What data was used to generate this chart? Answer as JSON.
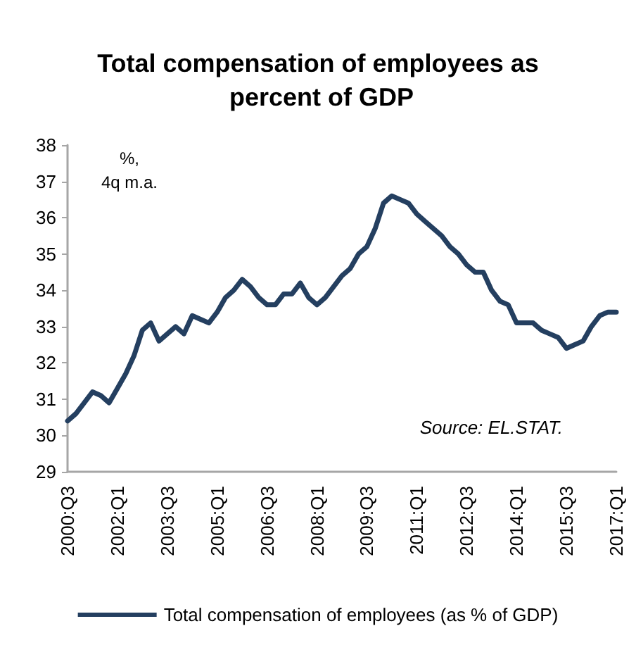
{
  "chart_data": {
    "type": "line",
    "title": "Total compensation of employees as percent of GDP",
    "annotations": [
      "%,\n4q m.a.",
      "Source: EL.STAT."
    ],
    "categories": [
      "2000:Q3",
      null,
      null,
      null,
      null,
      null,
      "2002:Q1",
      null,
      null,
      null,
      null,
      null,
      "2003:Q3",
      null,
      null,
      null,
      null,
      null,
      "2005:Q1",
      null,
      null,
      null,
      null,
      null,
      "2006:Q3",
      null,
      null,
      null,
      null,
      null,
      "2008:Q1",
      null,
      null,
      null,
      null,
      null,
      "2009:Q3",
      null,
      null,
      null,
      null,
      null,
      "2011:Q1",
      null,
      null,
      null,
      null,
      null,
      "2012:Q3",
      null,
      null,
      null,
      null,
      null,
      "2014:Q1",
      null,
      null,
      null,
      null,
      null,
      "2015:Q3",
      null,
      null,
      null,
      null,
      null,
      "2017:Q1"
    ],
    "series": [
      {
        "name": "Total compensation of employees (as % of GDP)",
        "color": "#243f60",
        "values": [
          30.4,
          30.6,
          30.9,
          31.2,
          31.1,
          30.9,
          31.3,
          31.7,
          32.2,
          32.9,
          33.1,
          32.6,
          32.8,
          33.0,
          32.8,
          33.3,
          33.2,
          33.1,
          33.4,
          33.8,
          34.0,
          34.3,
          34.1,
          33.8,
          33.6,
          33.6,
          33.9,
          33.9,
          34.2,
          33.8,
          33.6,
          33.8,
          34.1,
          34.4,
          34.6,
          35.0,
          35.2,
          35.7,
          36.4,
          36.6,
          36.5,
          36.4,
          36.1,
          35.9,
          35.7,
          35.5,
          35.2,
          35.0,
          34.7,
          34.5,
          34.5,
          34.0,
          33.7,
          33.6,
          33.1,
          33.1,
          33.1,
          32.9,
          32.8,
          32.7,
          32.4,
          32.5,
          32.6,
          33.0,
          33.3,
          33.4,
          33.4
        ]
      }
    ],
    "ylim": [
      29,
      38
    ],
    "yticks": [
      29,
      30,
      31,
      32,
      33,
      34,
      35,
      36,
      37,
      38
    ],
    "grid": false,
    "legend": "bottom",
    "marker": "none",
    "line_style": "solid"
  }
}
